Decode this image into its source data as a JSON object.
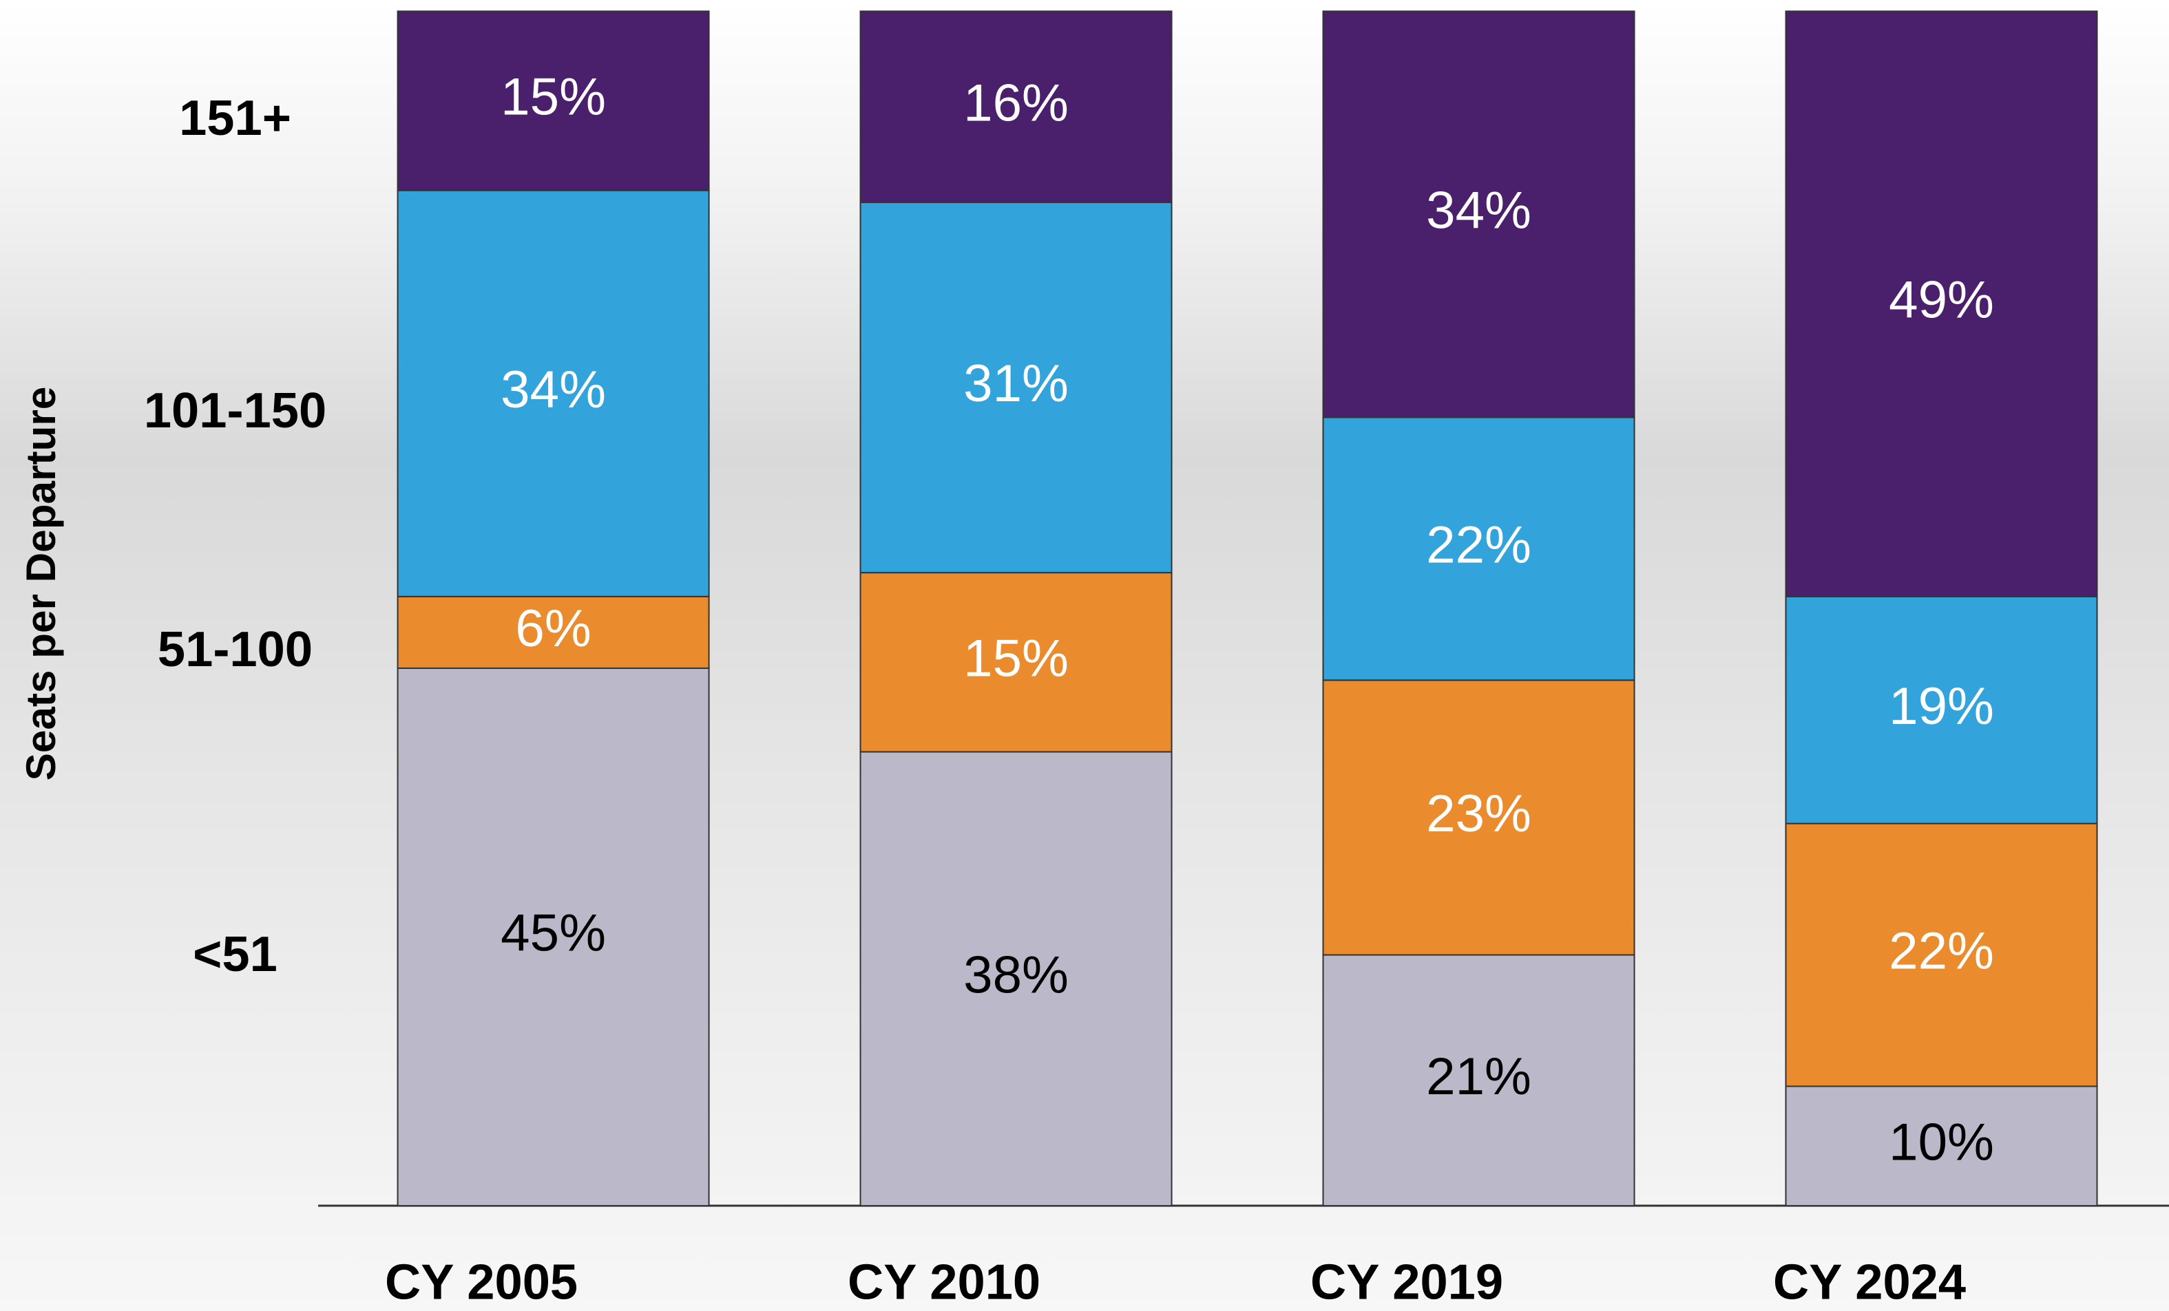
{
  "chart_data": {
    "type": "stacked-bar",
    "y_label": "Seats per Departure",
    "categories": [
      "CY 2005",
      "CY 2010",
      "CY 2019",
      "CY 2024"
    ],
    "series": [
      {
        "name": "<51",
        "color": "#bab8c9",
        "values": [
          45,
          38,
          21,
          10
        ],
        "value_labels": [
          "45%",
          "38%",
          "21%",
          "10%"
        ]
      },
      {
        "name": "51-100",
        "color": "#ea8c2e",
        "values": [
          6,
          15,
          23,
          22
        ],
        "value_labels": [
          "6%",
          "15%",
          "23%",
          "22%"
        ]
      },
      {
        "name": "101-150",
        "color": "#33a3db",
        "values": [
          34,
          31,
          22,
          19
        ],
        "value_labels": [
          "34%",
          "31%",
          "22%",
          "19%"
        ]
      },
      {
        "name": "151+",
        "color": "#4a1f6b",
        "values": [
          15,
          16,
          34,
          49
        ],
        "value_labels": [
          "15%",
          "16%",
          "34%",
          "49%"
        ]
      }
    ],
    "ylim": [
      0,
      100
    ]
  }
}
